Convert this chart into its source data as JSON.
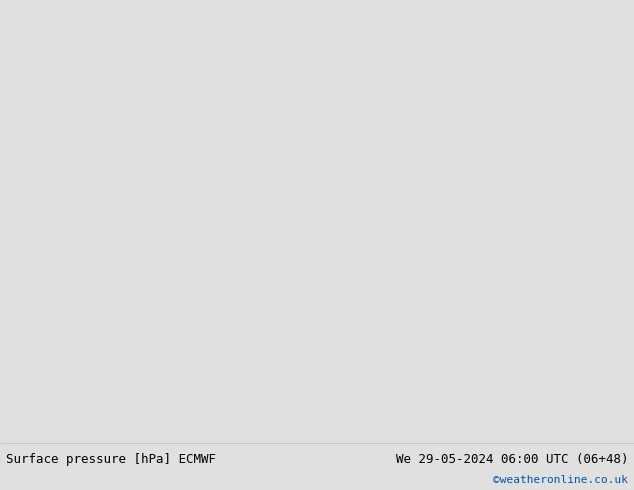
{
  "title_left": "Surface pressure [hPa] ECMWF",
  "title_right": "We 29-05-2024 06:00 UTC (06+48)",
  "credit": "©weatheronline.co.uk",
  "bg_color": "#e0e0e0",
  "land_color": "#c8eab4",
  "sea_color": "#e0e0e8",
  "coast_color": "#888888",
  "figsize": [
    6.34,
    4.9
  ],
  "dpi": 100,
  "extent": [
    -25,
    20,
    43,
    65
  ],
  "isobars": {
    "1004": {
      "color": "#0000dd",
      "lw": 1.3
    },
    "1008": {
      "color": "#0000dd",
      "lw": 1.3
    },
    "1013": {
      "color": "#000000",
      "lw": 1.6
    },
    "1016": {
      "color": "#cc0000",
      "lw": 1.3
    }
  }
}
